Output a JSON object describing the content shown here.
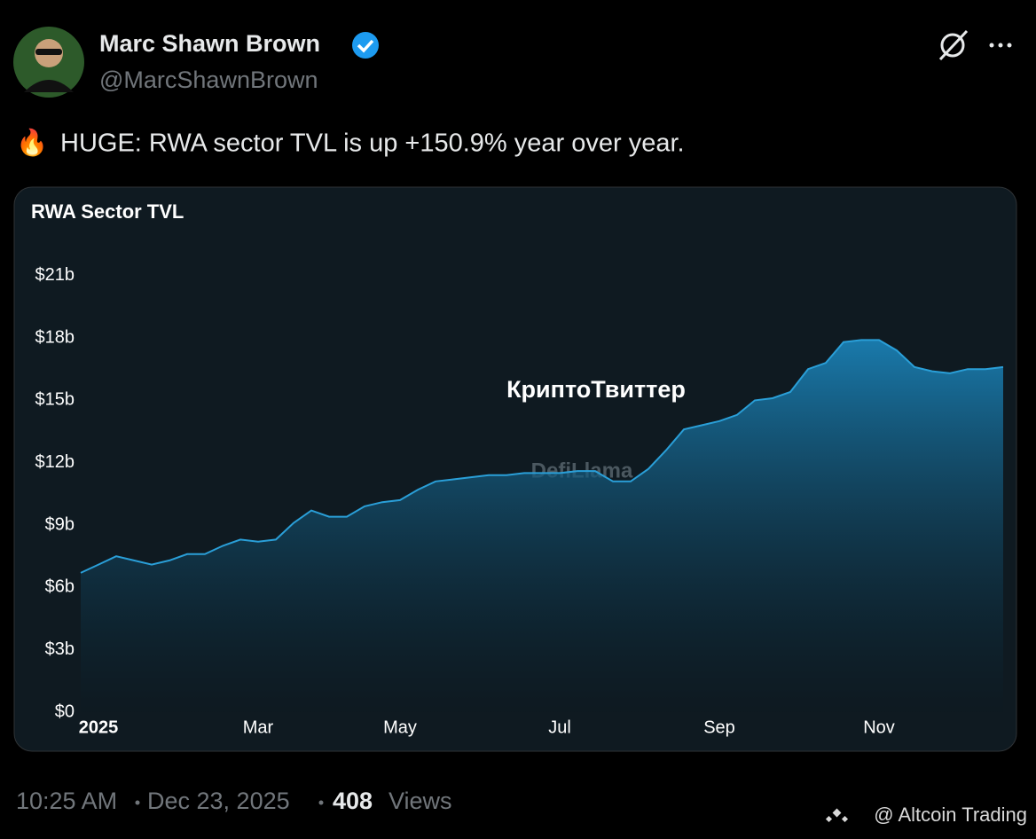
{
  "post": {
    "author": "Marc Shawn Brown",
    "handle": "@MarcShawnBrown",
    "emoji": "🔥",
    "text": "HUGE: RWA sector TVL is up +150.9% year over year.",
    "time": "10:25 AM",
    "date": "Dec 23, 2025",
    "views": "408",
    "views_label": "Views",
    "watermark": "@ Altcoin Trading"
  },
  "chart_data": {
    "type": "area",
    "title": "RWA Sector TVL",
    "color": "#2a9fd8",
    "annotations": [
      "КриптоТвиттер",
      "DefiLlama"
    ],
    "categories": [
      null,
      "2025",
      null,
      null,
      null,
      null,
      null,
      null,
      null,
      null,
      "Mar",
      null,
      null,
      null,
      null,
      null,
      null,
      null,
      "May",
      null,
      null,
      null,
      null,
      null,
      null,
      null,
      null,
      "Jul",
      null,
      null,
      null,
      null,
      null,
      null,
      null,
      null,
      "Sep",
      null,
      null,
      null,
      null,
      null,
      null,
      null,
      null,
      "Nov",
      null,
      null,
      null,
      null,
      null,
      null,
      null
    ],
    "values": [
      6.7,
      7.1,
      7.5,
      7.3,
      7.1,
      7.3,
      7.6,
      7.6,
      8.0,
      8.3,
      8.2,
      8.3,
      9.1,
      9.7,
      9.4,
      9.4,
      9.9,
      10.1,
      10.2,
      10.7,
      11.1,
      11.2,
      11.3,
      11.4,
      11.4,
      11.5,
      11.5,
      11.5,
      11.6,
      11.6,
      11.1,
      11.1,
      11.7,
      12.6,
      13.6,
      13.8,
      14.0,
      14.3,
      15.0,
      15.1,
      15.4,
      16.5,
      16.8,
      17.8,
      17.9,
      17.9,
      17.4,
      16.6,
      16.4,
      16.3,
      16.5,
      16.5,
      16.6
    ],
    "ylim": [
      0,
      21.5
    ],
    "yticks": [
      {
        "value": 0,
        "label": "$0"
      },
      {
        "value": 3,
        "label": "$3b"
      },
      {
        "value": 6,
        "label": "$6b"
      },
      {
        "value": 9,
        "label": "$9b"
      },
      {
        "value": 12,
        "label": "$12b"
      },
      {
        "value": 15,
        "label": "$15b"
      },
      {
        "value": 18,
        "label": "$18b"
      },
      {
        "value": 21,
        "label": "$21b"
      }
    ],
    "grid": false
  }
}
